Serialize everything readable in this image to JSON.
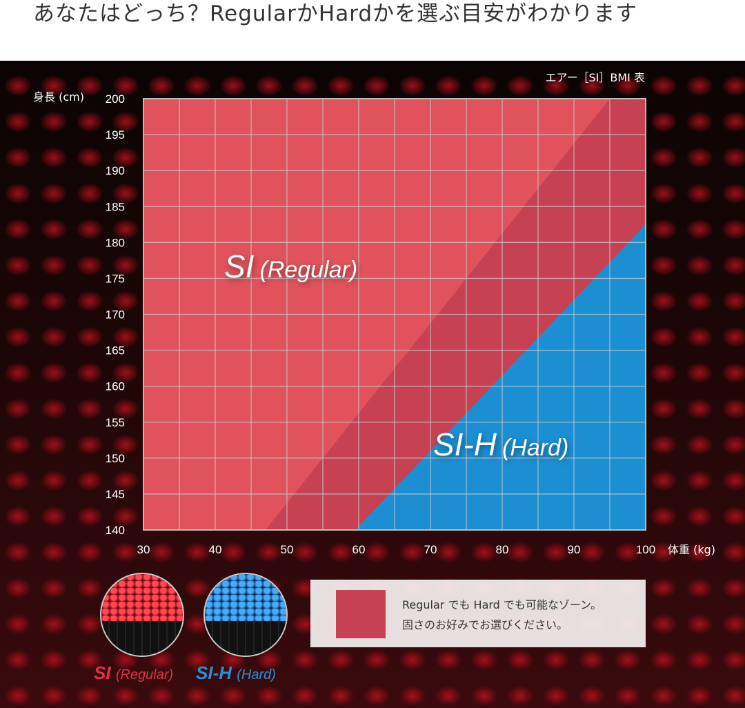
{
  "headline": "あなたはどっち？RegularかHardかを選ぶ目安がわかります",
  "chart_data": {
    "type": "area",
    "title": "エアー［SI］BMI 表",
    "xlabel": "体重 (kg)",
    "ylabel": "身長 (cm)",
    "xlim": [
      30,
      100
    ],
    "ylim": [
      140,
      200
    ],
    "x_ticks": [
      "30",
      "40",
      "50",
      "60",
      "70",
      "80",
      "90",
      "100"
    ],
    "y_ticks": [
      "200",
      "195",
      "190",
      "185",
      "180",
      "175",
      "170",
      "165",
      "160",
      "155",
      "150",
      "145",
      "140"
    ],
    "grid": true,
    "grid_step": {
      "x": 5,
      "y": 5
    },
    "regions": [
      {
        "color": "#e0535c"
      },
      {
        "color": "#c64252",
        "boundary_upper": [
          [
            47,
            140
          ],
          [
            95,
            200
          ]
        ]
      },
      {
        "color": "#1b8fd2",
        "boundary": [
          [
            59.5,
            140
          ],
          [
            100,
            182.5
          ]
        ]
      }
    ],
    "annotations": {
      "regular": {
        "main": "SI",
        "sub": "(Regular)"
      },
      "hard": {
        "main": "SI-H",
        "sub": "(Hard)"
      }
    }
  },
  "legend": {
    "swatch_color": "#c64252",
    "line1": "Regular でも Hard でも可能なゾーン。",
    "line2": "固さのお好みでお選びください。"
  },
  "products": [
    {
      "main": "SI",
      "sub": "(Regular)",
      "color": "#e0304a"
    },
    {
      "main": "SI-H",
      "sub": "(Hard)",
      "color": "#2a8fd8"
    }
  ]
}
